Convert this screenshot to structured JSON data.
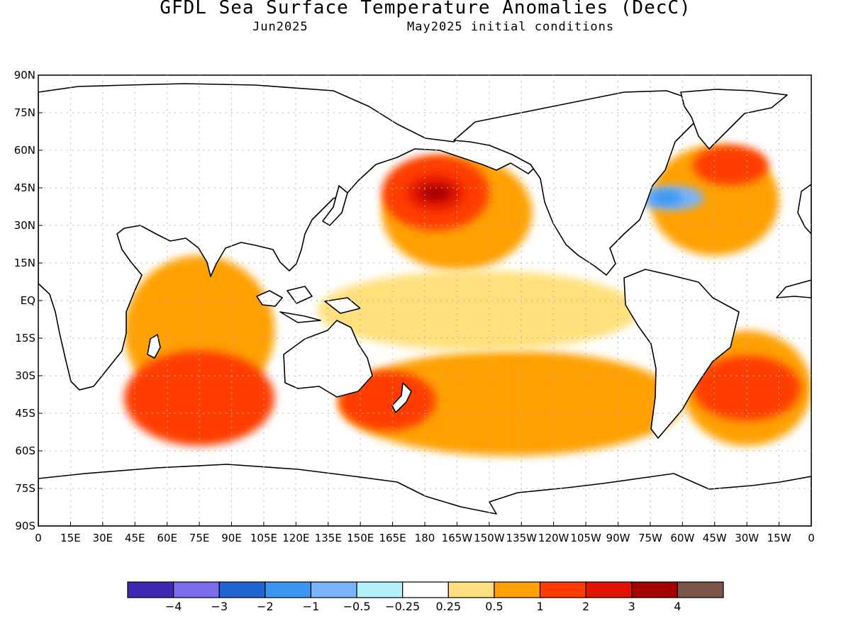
{
  "title": "GFDL Sea Surface Temperature Anomalies (DecC)",
  "subtitle_left": "Jun2025",
  "subtitle_right": "May2025 initial conditions",
  "colors": {
    "land": "#ffffff",
    "coast": "#000000",
    "grid": "#b5b5b5",
    "ocean_base": "#ffffff"
  },
  "map": {
    "projection": "equirectangular",
    "lon_range": [
      0,
      360
    ],
    "lat_range": [
      -90,
      90
    ],
    "grid_dotted": true,
    "lat_ticks": [
      "90N",
      "75N",
      "60N",
      "45N",
      "30N",
      "15N",
      "EQ",
      "15S",
      "30S",
      "45S",
      "60S",
      "75S",
      "90S"
    ],
    "lon_ticks": [
      "0",
      "15E",
      "30E",
      "45E",
      "60E",
      "75E",
      "90E",
      "105E",
      "120E",
      "135E",
      "150E",
      "165E",
      "180",
      "165W",
      "150W",
      "135W",
      "120W",
      "105W",
      "90W",
      "75W",
      "60W",
      "45W",
      "30W",
      "15W",
      "0"
    ]
  },
  "colorbar": {
    "colors": [
      "#3c28b4",
      "#7b6cee",
      "#1e64d2",
      "#3c96f0",
      "#78b4fa",
      "#b4f0fa",
      "#ffffff",
      "#ffe07c",
      "#ffa000",
      "#ff3c00",
      "#e11400",
      "#a50000",
      "#7a5448"
    ],
    "labels": [
      "-4",
      "-3",
      "-2",
      "-1",
      "-0.5",
      "-0.25",
      "0.25",
      "0.5",
      "1",
      "2",
      "3",
      "4"
    ]
  },
  "anomaly_regions": [
    {
      "level": "0.5",
      "color": "#ffa000",
      "lon": [
        160,
        230
      ],
      "lat": [
        12,
        58
      ]
    },
    {
      "level": "1",
      "color": "#ff3c00",
      "lon": [
        160,
        210
      ],
      "lat": [
        28,
        58
      ]
    },
    {
      "level": "2",
      "color": "#e11400",
      "lon": [
        172,
        198
      ],
      "lat": [
        36,
        50
      ]
    },
    {
      "level": "3",
      "color": "#a50000",
      "lon": [
        178,
        192
      ],
      "lat": [
        40,
        46
      ]
    },
    {
      "level": "0.5",
      "color": "#ffa000",
      "lon": [
        285,
        345
      ],
      "lat": [
        18,
        62
      ]
    },
    {
      "level": "1",
      "color": "#ff3c00",
      "lon": [
        305,
        340
      ],
      "lat": [
        46,
        62
      ]
    },
    {
      "level": "0.5",
      "color": "#ffa000",
      "lon": [
        40,
        110
      ],
      "lat": [
        -42,
        18
      ]
    },
    {
      "level": "1",
      "color": "#ff3c00",
      "lon": [
        40,
        110
      ],
      "lat": [
        -58,
        -20
      ]
    },
    {
      "level": "0.5",
      "color": "#ffa000",
      "lon": [
        300,
        360
      ],
      "lat": [
        -58,
        -12
      ]
    },
    {
      "level": "1",
      "color": "#ff3c00",
      "lon": [
        305,
        355
      ],
      "lat": [
        -48,
        -22
      ]
    },
    {
      "level": "0.5",
      "color": "#ffa000",
      "lon": [
        140,
        300
      ],
      "lat": [
        -62,
        -20
      ]
    },
    {
      "level": "1",
      "color": "#ff3c00",
      "lon": [
        140,
        185
      ],
      "lat": [
        -52,
        -28
      ]
    },
    {
      "level": "0.25",
      "color": "#ffe07c",
      "lon": [
        130,
        280
      ],
      "lat": [
        -20,
        12
      ]
    },
    {
      "level": "-1",
      "color": "#78b4fa",
      "lon": [
        280,
        310
      ],
      "lat": [
        36,
        46
      ]
    },
    {
      "level": "-2",
      "color": "#3c96f0",
      "lon": [
        285,
        300
      ],
      "lat": [
        38,
        44
      ]
    }
  ]
}
